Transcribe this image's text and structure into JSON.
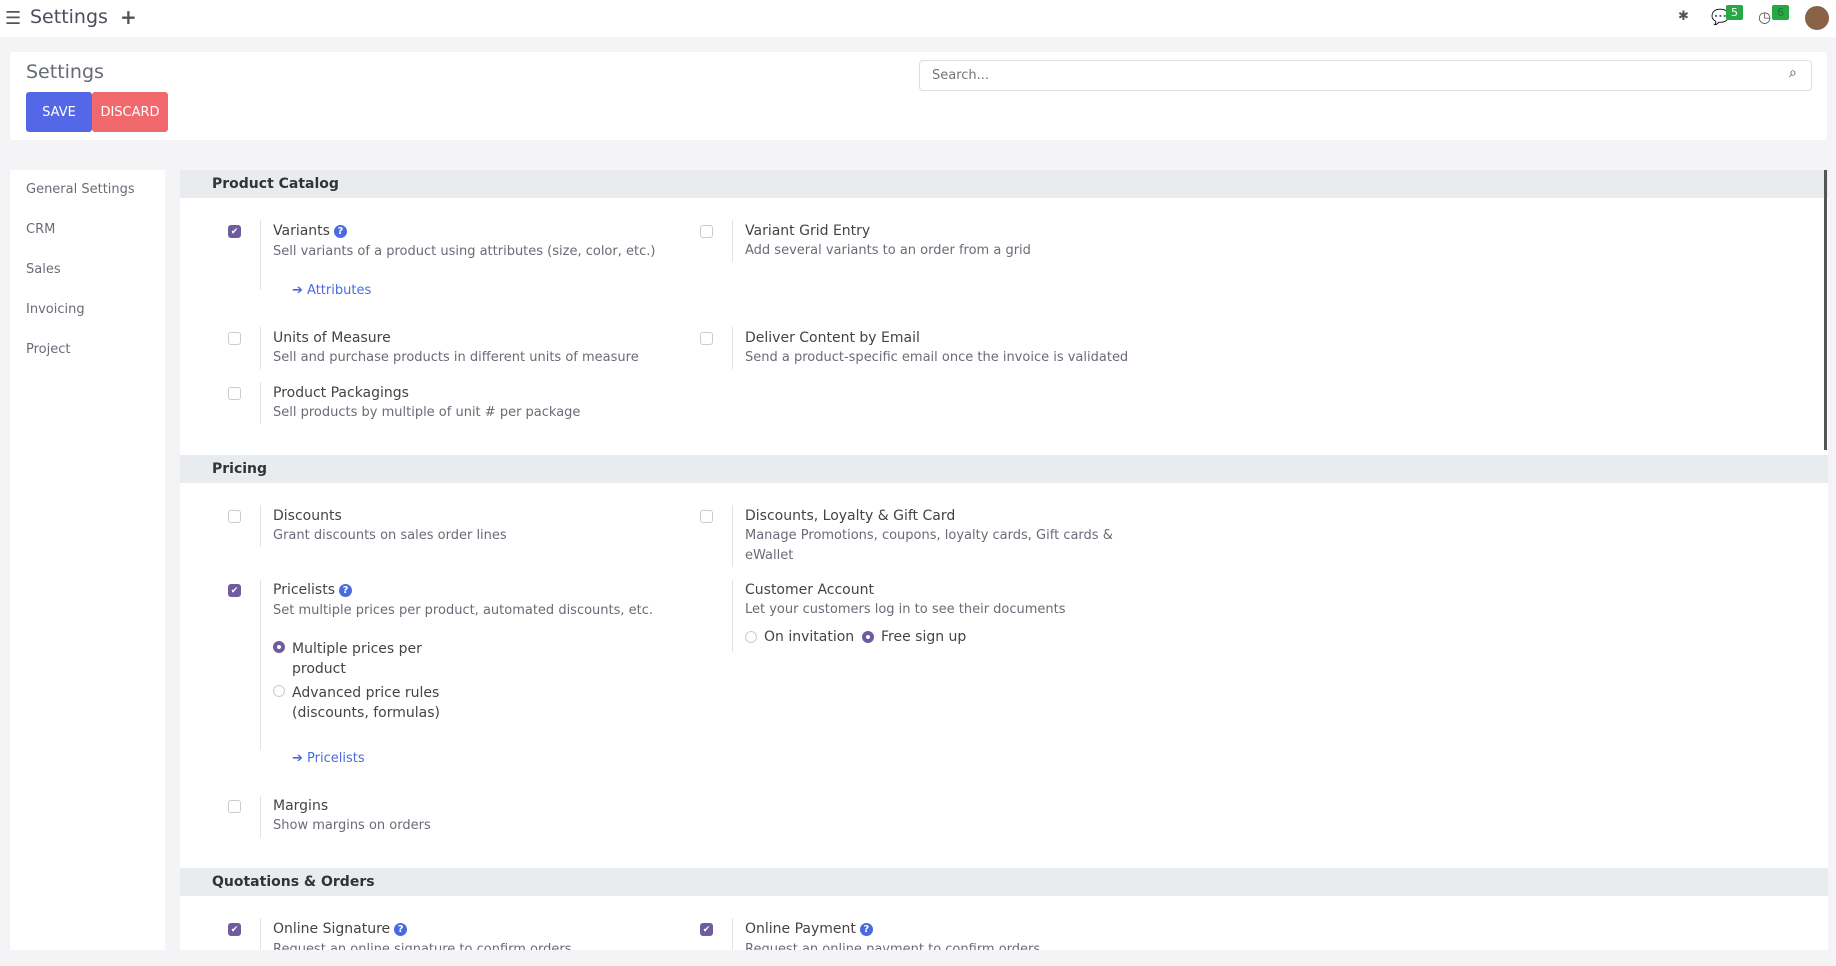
{
  "topbar": {
    "title": "Settings",
    "notifications": {
      "messages": "5",
      "activities": "6"
    }
  },
  "header": {
    "title": "Settings",
    "save": "SAVE",
    "discard": "DISCARD",
    "search_placeholder": "Search..."
  },
  "sidebar": [
    "General Settings",
    "CRM",
    "Sales",
    "Invoicing",
    "Project"
  ],
  "sections": {
    "catalog": {
      "title": "Product Catalog",
      "variants": {
        "title": "Variants",
        "desc": "Sell variants of a product using attributes (size, color, etc.)",
        "link": "Attributes",
        "checked": true
      },
      "grid": {
        "title": "Variant Grid Entry",
        "desc": "Add several variants to an order from a grid",
        "checked": false
      },
      "uom": {
        "title": "Units of Measure",
        "desc": "Sell and purchase products in different units of measure",
        "checked": false
      },
      "deliver": {
        "title": "Deliver Content by Email",
        "desc": "Send a product-specific email once the invoice is validated",
        "checked": false
      },
      "pack": {
        "title": "Product Packagings",
        "desc": "Sell products by multiple of unit # per package",
        "checked": false
      }
    },
    "pricing": {
      "title": "Pricing",
      "discounts": {
        "title": "Discounts",
        "desc": "Grant discounts on sales order lines",
        "checked": false
      },
      "loyalty": {
        "title": "Discounts, Loyalty & Gift Card",
        "desc1": "Manage Promotions, coupons, loyalty cards, Gift cards &",
        "desc2": "eWallet",
        "checked": false
      },
      "pricelists": {
        "title": "Pricelists",
        "desc": "Set multiple prices per product, automated discounts, etc.",
        "opt1a": "Multiple prices per",
        "opt1b": "product",
        "opt2a": "Advanced price rules",
        "opt2b": "(discounts, formulas)",
        "selected": "Multiple prices per product",
        "link": "Pricelists",
        "checked": true
      },
      "customer": {
        "title": "Customer Account",
        "desc": "Let your customers log in to see their documents",
        "opt1": "On invitation",
        "opt2": "Free sign up",
        "selected": "Free sign up"
      },
      "margins": {
        "title": "Margins",
        "desc": "Show margins on orders",
        "checked": false
      }
    },
    "quotes": {
      "title": "Quotations & Orders",
      "signature": {
        "title": "Online Signature",
        "desc": "Request an online signature to confirm orders",
        "checked": true
      },
      "payment": {
        "title": "Online Payment",
        "desc": "Request an online payment to confirm orders",
        "checked": true
      }
    }
  },
  "colors": {
    "primary": "#5468e7",
    "danger": "#f1696c",
    "checkbox": "#6f5c9e",
    "link": "#4a6bdf"
  }
}
